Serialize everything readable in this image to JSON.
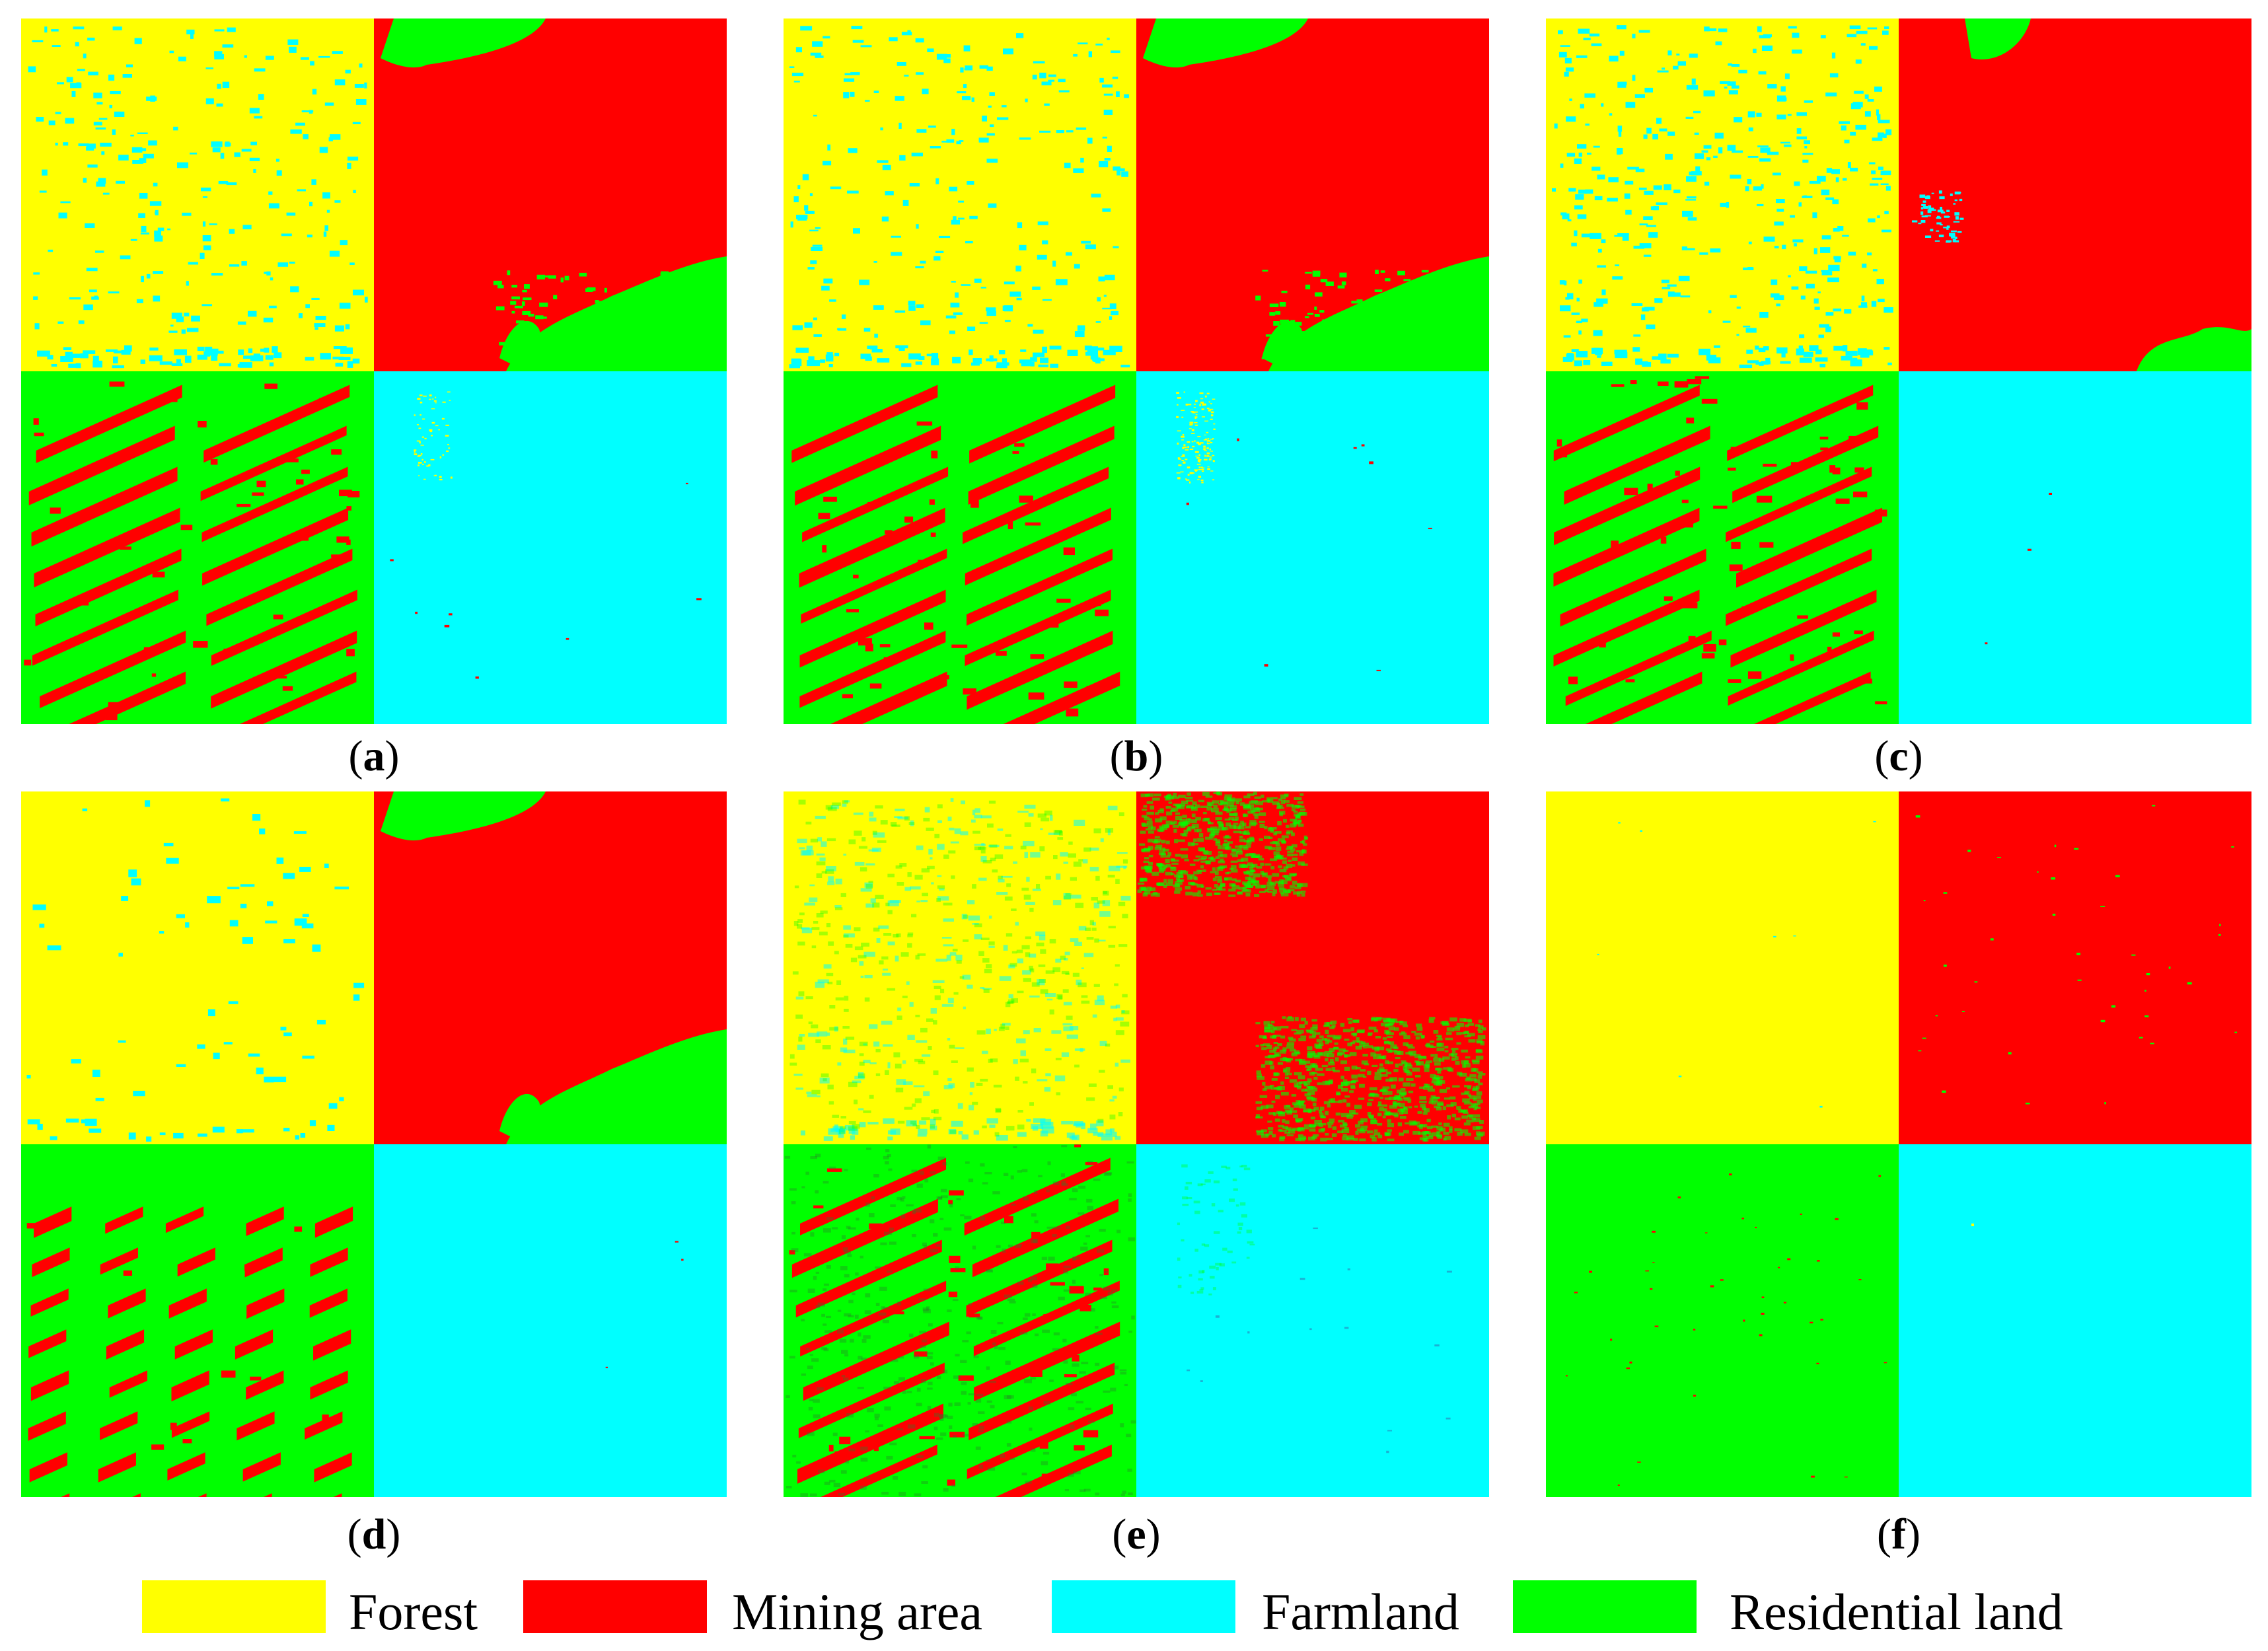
{
  "figure": {
    "panels": [
      {
        "id": "a",
        "caption_open": "(",
        "caption_letter": "a",
        "caption_close": ")",
        "variant": "a"
      },
      {
        "id": "b",
        "caption_open": "(",
        "caption_letter": "b",
        "caption_close": ")",
        "variant": "b"
      },
      {
        "id": "c",
        "caption_open": "(",
        "caption_letter": "c",
        "caption_close": ")",
        "variant": "c"
      },
      {
        "id": "d",
        "caption_open": "(",
        "caption_letter": "d",
        "caption_close": ")",
        "variant": "d"
      },
      {
        "id": "e",
        "caption_open": "(",
        "caption_letter": "e",
        "caption_close": ")",
        "variant": "e"
      },
      {
        "id": "f",
        "caption_open": "(",
        "caption_letter": "f",
        "caption_close": ")",
        "variant": "f"
      }
    ],
    "legend": [
      {
        "label": "Forest",
        "color": "#ffff00"
      },
      {
        "label": "Mining area",
        "color": "#ff0000"
      },
      {
        "label": "Farmland",
        "color": "#00ffff"
      },
      {
        "label": "Residential land",
        "color": "#00ff00"
      }
    ],
    "quadrant_classes": {
      "top_left": "Forest",
      "top_right": "Mining area",
      "bottom_left": "Residential land",
      "bottom_right": "Farmland"
    }
  }
}
